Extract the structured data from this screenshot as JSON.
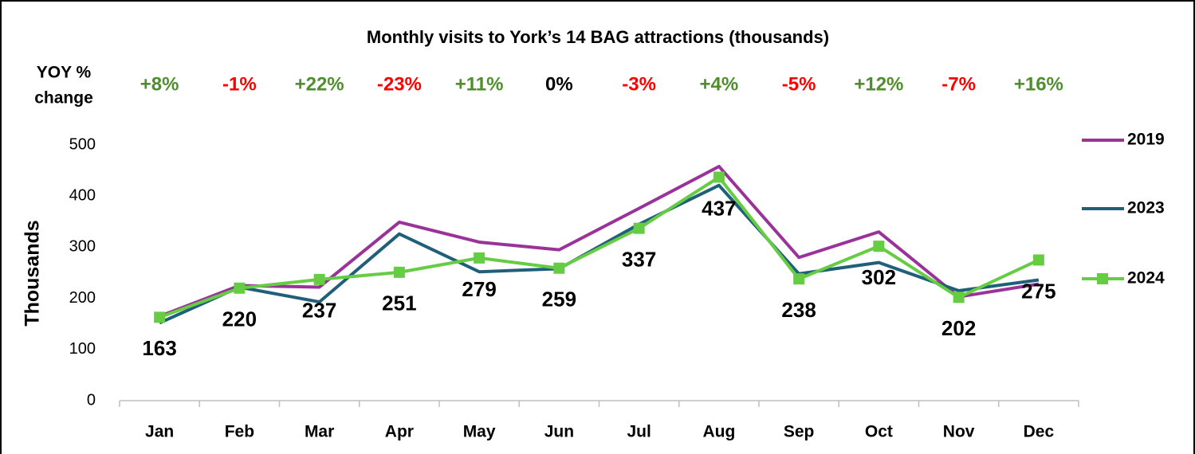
{
  "chart_data": {
    "type": "line",
    "title": "Monthly visits to York’s 14 BAG attractions (thousands)",
    "y_label": "Thousands",
    "categories": [
      "Jan",
      "Feb",
      "Mar",
      "Apr",
      "May",
      "Jun",
      "Jul",
      "Aug",
      "Sep",
      "Oct",
      "Nov",
      "Dec"
    ],
    "series": [
      {
        "name": "2019",
        "color": "#993399",
        "values": [
          165,
          225,
          222,
          349,
          310,
          295,
          376,
          458,
          280,
          330,
          203,
          228
        ]
      },
      {
        "name": "2023",
        "color": "#1f5f7a",
        "values": [
          152,
          222,
          193,
          326,
          252,
          258,
          345,
          421,
          248,
          270,
          215,
          236
        ]
      },
      {
        "name": "2024",
        "color": "#66cc44",
        "marker": "square",
        "data_labels": true,
        "values": [
          163,
          220,
          237,
          251,
          279,
          259,
          337,
          437,
          238,
          302,
          202,
          275
        ]
      }
    ],
    "yoy": {
      "title": [
        "YOY %",
        "change"
      ],
      "values": [
        8,
        -1,
        22,
        -23,
        11,
        0,
        -3,
        4,
        -5,
        12,
        -7,
        16
      ],
      "value_labels": [
        "+8%",
        "-1%",
        "+22%",
        "-23%",
        "+11%",
        "0%",
        "-3%",
        "+4%",
        "-5%",
        "+12%",
        "-7%",
        "+16%"
      ],
      "positive_color": "#4e8e2e",
      "negative_color": "#ff0000",
      "zero_color": "#000000"
    },
    "ylim": [
      0,
      500
    ],
    "yticks": [
      0,
      100,
      200,
      300,
      400,
      500
    ],
    "grid": false,
    "legend": "right"
  }
}
